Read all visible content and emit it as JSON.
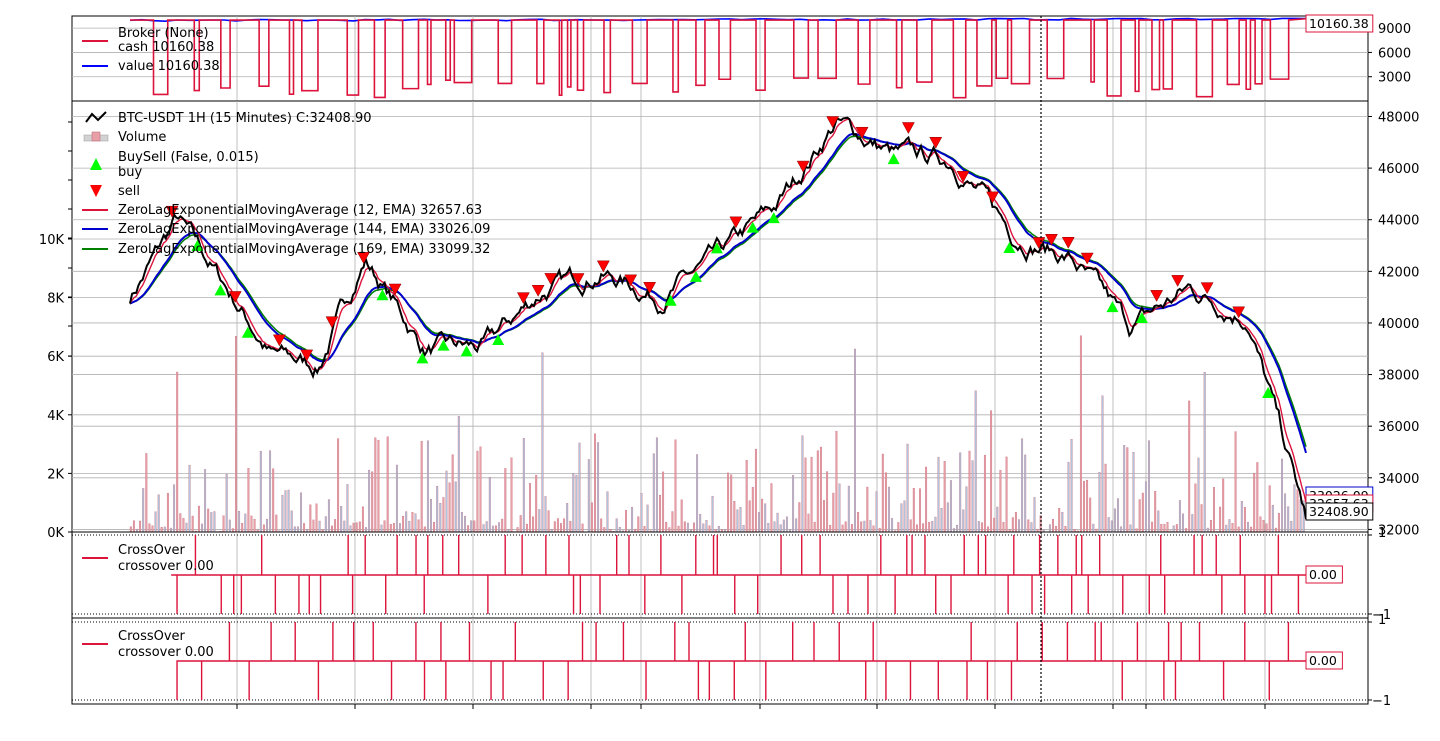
{
  "colors": {
    "cash": "#dc143c",
    "value": "#0000ff",
    "price": "#000000",
    "ema12": "#dc143c",
    "ema144": "#0000cd",
    "ema169": "#008000",
    "buy": "#00ff00",
    "sell": "#ff0000",
    "volume_up": "#b0c4de",
    "volume_down": "#e8a0a8",
    "crossover": "#dc143c",
    "grid": "#b0b0b0",
    "cursor": "#000000"
  },
  "broker_panel": {
    "legend": [
      {
        "label": "Broker (None)",
        "line": false
      },
      {
        "label": "cash 10160.38",
        "line": true,
        "color_key": "cash"
      },
      {
        "label": "value 10160.38",
        "line": true,
        "color_key": "value"
      }
    ],
    "yticks": [
      "9000",
      "6000",
      "3000"
    ],
    "last_value_label": "10160.38"
  },
  "price_panel": {
    "legend": [
      {
        "label": "BTC-USDT 1H (15 Minutes) C:32408.90",
        "marker": "price-line"
      },
      {
        "label": "Volume",
        "marker": "volume-box"
      },
      {
        "label": "BuySell (False, 0.015)",
        "marker": "buy-triangle"
      },
      {
        "label": "buy",
        "marker": "none"
      },
      {
        "label": "sell",
        "marker": "sell-triangle"
      },
      {
        "label": "ZeroLagExponentialMovingAverage (12, EMA) 32657.63",
        "marker": "ema12-line"
      },
      {
        "label": "ZeroLagExponentialMovingAverage (144, EMA) 33026.09",
        "marker": "ema144-line"
      },
      {
        "label": "ZeroLagExponentialMovingAverage (169, EMA) 33099.32",
        "marker": "ema169-line"
      }
    ],
    "yticks_right": [
      "48000",
      "46000",
      "44000",
      "42000",
      "40000",
      "38000",
      "36000",
      "34000",
      "32000"
    ],
    "yticks_left": [
      "10K",
      "8K",
      "6K",
      "4K",
      "2K",
      "0K"
    ],
    "last_labels": [
      "33026.09",
      "32657.63",
      "32408.90"
    ]
  },
  "crossover_panels": [
    {
      "legend_title": "CrossOver",
      "legend_item": "crossover 0.00",
      "yticks": [
        "1",
        "−1"
      ],
      "last_value_label": "0.00"
    },
    {
      "legend_title": "CrossOver",
      "legend_item": "crossover 0.00",
      "yticks": [
        "1",
        "−1"
      ],
      "last_value_label": "0.00"
    }
  ],
  "chart_data": [
    {
      "type": "line",
      "title": "Broker (None)",
      "series": [
        {
          "name": "cash 10160.38",
          "last": 10160.38
        },
        {
          "name": "value 10160.38",
          "last": 10160.38
        }
      ],
      "ylim": [
        0,
        10500
      ],
      "notes": "cash repeatedly drops to roughly 500-3000 while positions are open and returns to ~10000 when flat"
    },
    {
      "type": "line",
      "title": "BTC-USDT 1H (15 Minutes) C:32408.90",
      "ylim": [
        31900,
        48600
      ],
      "volume_ylim": [
        0,
        10000
      ],
      "x": [
        0,
        4,
        8,
        12,
        16,
        20,
        25,
        30,
        35,
        40,
        45,
        50,
        55,
        60,
        65,
        70,
        75,
        80,
        85,
        90,
        95,
        100
      ],
      "series": [
        {
          "name": "close",
          "values": [
            41000,
            44000,
            41500,
            38800,
            38300,
            42500,
            39000,
            39000,
            41200,
            42000,
            41000,
            42500,
            44500,
            47800,
            46500,
            46300,
            43500,
            42500,
            39800,
            41300,
            40300,
            32408.9
          ]
        },
        {
          "name": "ZeroLagExponentialMovingAverage (12, EMA) 32657.63",
          "last": 32657.63
        },
        {
          "name": "ZeroLagExponentialMovingAverage (144, EMA) 33026.09",
          "last": 33026.09
        },
        {
          "name": "ZeroLagExponentialMovingAverage (169, EMA) 33099.32",
          "last": 33099.32
        }
      ],
      "buy_markers": "green up-triangles below bars at entry points",
      "sell_markers": "red down-triangles above bars at exit points",
      "volume": "bars mostly under 2K, spikes up to ~7K"
    },
    {
      "type": "line",
      "title": "CrossOver",
      "series": [
        {
          "name": "crossover 0.00",
          "last": 0.0
        }
      ],
      "ylim": [
        -1,
        1
      ]
    },
    {
      "type": "line",
      "title": "CrossOver",
      "series": [
        {
          "name": "crossover 0.00",
          "last": 0.0
        }
      ],
      "ylim": [
        -1,
        1
      ]
    }
  ]
}
